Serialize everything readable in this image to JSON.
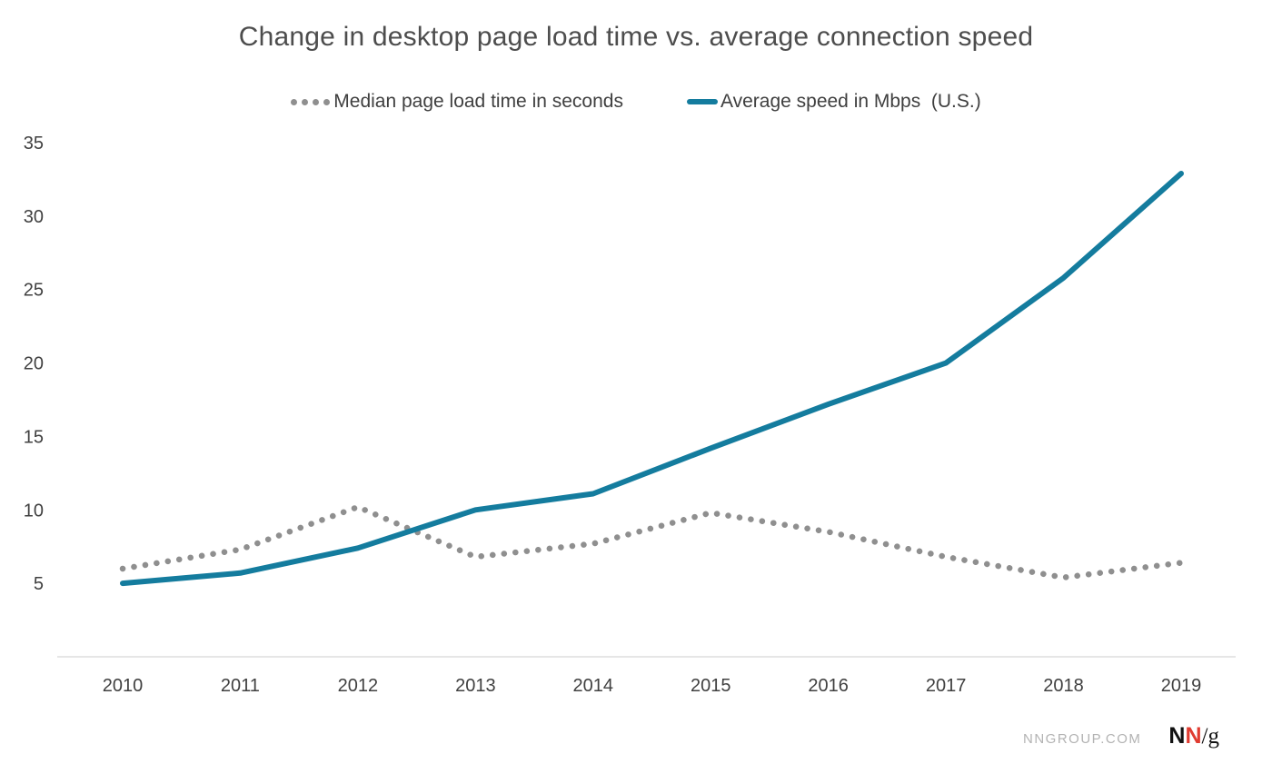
{
  "title": "Change in desktop page load time vs. average connection speed",
  "legend": {
    "load_time_label": "Median page load time in seconds",
    "speed_label": "Average speed in Mbps  (U.S.)"
  },
  "footer": {
    "site": "NNGROUP.COM",
    "logo_n1": "N",
    "logo_n2": "N",
    "logo_g": "/g"
  },
  "colors": {
    "load_time": "#8f8f8f",
    "speed": "#147c9e",
    "title": "#4d4d4d",
    "axis_text": "#404040",
    "baseline": "#dddddd",
    "footer_text": "#b3b3b3",
    "logo_red": "#e03c31"
  },
  "chart_data": {
    "type": "line",
    "title": "Change in desktop page load time vs. average connection speed",
    "x": [
      2010,
      2011,
      2012,
      2013,
      2014,
      2015,
      2016,
      2017,
      2018,
      2019
    ],
    "series": [
      {
        "name": "Median page load time in seconds",
        "style": "dotted",
        "color_key": "load_time",
        "values": [
          6.0,
          7.3,
          10.2,
          6.8,
          7.7,
          9.8,
          8.5,
          6.8,
          5.4,
          6.4
        ]
      },
      {
        "name": "Average speed in Mbps (U.S.)",
        "style": "solid",
        "color_key": "speed",
        "values": [
          5.0,
          5.7,
          7.4,
          10.0,
          11.1,
          14.2,
          17.2,
          20.0,
          25.8,
          32.9
        ]
      }
    ],
    "yticks": [
      5,
      10,
      15,
      20,
      25,
      30,
      35
    ],
    "ylim": [
      0,
      35
    ],
    "grid": "off",
    "legend_position": "top"
  }
}
